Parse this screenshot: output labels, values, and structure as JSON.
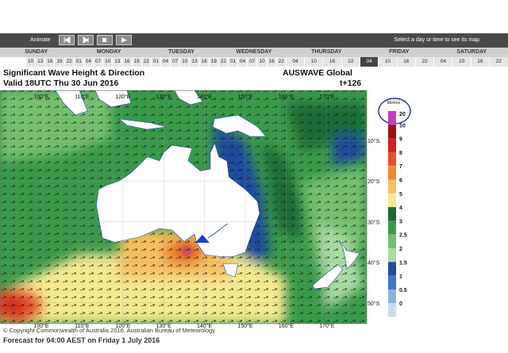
{
  "toolbar": {
    "animate": "Animate",
    "hint": "Select a day or time to see its map"
  },
  "days": [
    "SUNDAY",
    "MONDAY",
    "TUESDAY",
    "WEDNESDAY",
    "THURSDAY",
    "FRIDAY",
    "SATURDAY"
  ],
  "hours": [
    "10",
    "13",
    "16",
    "19",
    "22",
    "01",
    "04",
    "07",
    "10",
    "13",
    "16",
    "19",
    "22",
    "01",
    "04",
    "07",
    "10",
    "13",
    "16",
    "19",
    "22",
    "01",
    "04",
    "07",
    "10",
    "16",
    "22",
    "04",
    "10",
    "16",
    "22",
    "04",
    "10",
    "16",
    "22",
    "04",
    "10",
    "16",
    "22"
  ],
  "header": {
    "title": "Significant Wave Height & Direction",
    "model": "AUSWAVE Global",
    "valid": "Valid 18UTC Thu 30 Jun 2016",
    "lead": "t+126"
  },
  "map": {
    "lon_labels": [
      "100°E",
      "110°E",
      "120°E",
      "130°E",
      "140°E",
      "150°E",
      "160°E",
      "170°E"
    ],
    "lat_labels": [
      "10°S",
      "20°S",
      "30°S",
      "40°S",
      "50°S"
    ]
  },
  "legend": {
    "title": "Metres",
    "labels": [
      20,
      10,
      9,
      8,
      7,
      6,
      5,
      4,
      3,
      2.5,
      2,
      1.5,
      1,
      0.5,
      0
    ],
    "colors": [
      "#c040c0",
      "#a01010",
      "#d42020",
      "#e8502a",
      "#f08a30",
      "#f6c060",
      "#f4e890",
      "#1e6a34",
      "#3a9a4a",
      "#74c070",
      "#a8dca0",
      "#1e4c9c",
      "#3a78c8",
      "#8ab4e0",
      "#c8dcf0"
    ]
  },
  "footer": {
    "copyright": "© Copyright Commonwealth of Australia 2016, Australian Bureau of Meteorology",
    "forecast": "Forecast for 04:00 AEST on Friday 1 July 2016"
  }
}
